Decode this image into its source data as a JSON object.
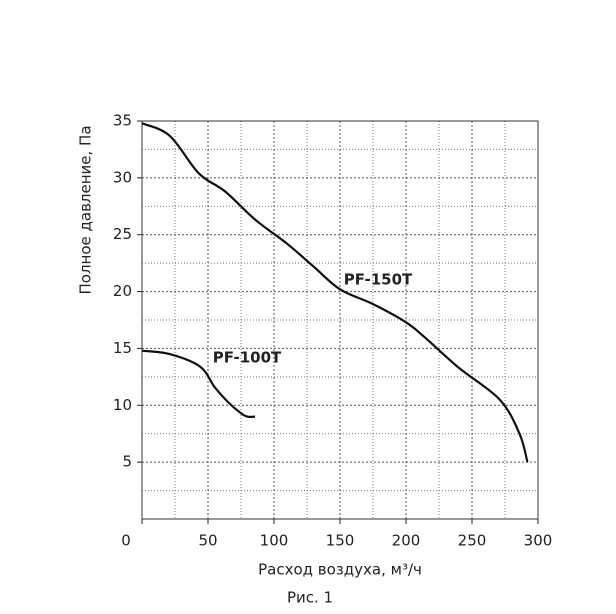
{
  "chart_data": {
    "type": "line",
    "caption": "Рис. 1",
    "xlabel": "Расход воздуха, м³/ч",
    "ylabel": "Полное давление, Па",
    "xlim": [
      0,
      300
    ],
    "xticks": [
      0,
      50,
      100,
      150,
      200,
      250,
      300
    ],
    "ylim": [
      0,
      35
    ],
    "yticks": [
      5,
      10,
      15,
      20,
      25,
      30,
      35
    ],
    "grid": true,
    "series": [
      {
        "name": "PF-150T",
        "color": "#111111",
        "x": [
          0,
          21,
          43,
          63,
          86,
          110,
          130,
          150,
          175,
          200,
          214,
          240,
          271,
          286,
          292
        ],
        "values": [
          34.8,
          33.7,
          30.4,
          28.8,
          26.3,
          24.2,
          22.2,
          20.2,
          18.9,
          17.3,
          16.0,
          13.3,
          10.5,
          7.5,
          5.0
        ]
      },
      {
        "name": "PF-100T",
        "color": "#111111",
        "x": [
          0,
          21,
          44,
          55,
          65,
          75,
          80,
          85.6
        ],
        "values": [
          14.8,
          14.5,
          13.4,
          11.6,
          10.3,
          9.3,
          9.0,
          9.0
        ]
      }
    ]
  }
}
